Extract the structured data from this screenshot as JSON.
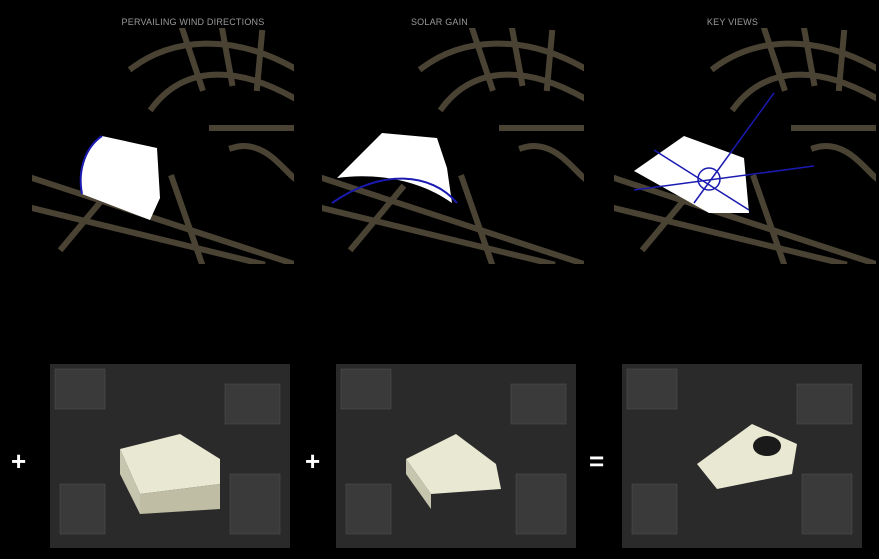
{
  "headings": [
    "PERVAILING WIND DIRECTIONS",
    "SOLAR GAIN",
    "KEY VIEWS"
  ],
  "operators": [
    "+",
    "+",
    "="
  ],
  "colors": {
    "background": "#000000",
    "road": "#4a4334",
    "building": "#ffffff",
    "analysis_line": "#1a1ab0",
    "heading_text": "#9a9a9a",
    "massing": "#e9e8d2"
  }
}
